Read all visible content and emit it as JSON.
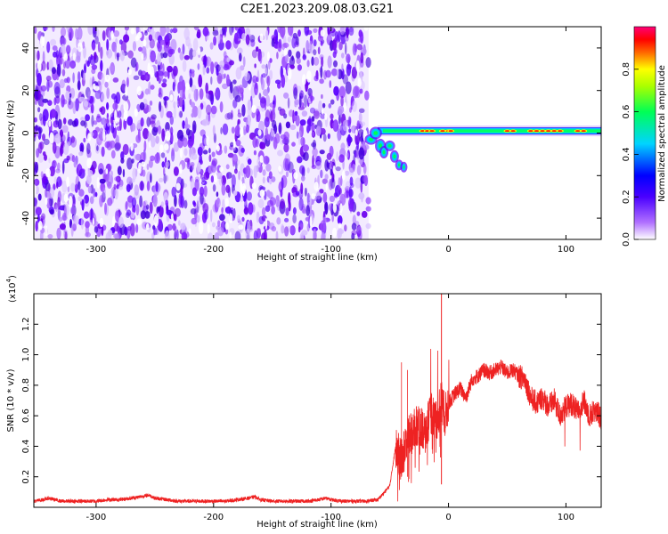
{
  "title": "C2E1.2023.209.08.03.G21",
  "chart_data": [
    {
      "type": "heatmap",
      "xlabel": "Height of straight line (km)",
      "ylabel": "Frequency (Hz)",
      "xlim": [
        -353,
        130
      ],
      "ylim": [
        -50,
        50
      ],
      "xticks": [
        -300,
        -200,
        -100,
        0,
        100
      ],
      "yticks": [
        -40,
        -20,
        0,
        20,
        40
      ],
      "tick_labels_x": [
        "-300",
        "-200",
        "-100",
        "0",
        "100"
      ],
      "tick_labels_y": [
        "-40",
        "-20",
        "0",
        "20",
        "40"
      ],
      "noise_region_x": [
        -353,
        -68
      ],
      "signal_line_freq_hz": 1,
      "signal_start_x": -68,
      "colorbar": {
        "label": "Normalized spectral amplitude",
        "range": [
          0.0,
          1.0
        ],
        "ticks": [
          0.0,
          0.2,
          0.4,
          0.6,
          0.8
        ],
        "tick_labels": [
          "0.0",
          "0.2",
          "0.4",
          "0.6",
          "0.8"
        ],
        "colors": [
          "#ffffff",
          "#8a00ff",
          "#0000ff",
          "#00d4ff",
          "#00ff66",
          "#ffff00",
          "#ff3300",
          "#ff0077"
        ]
      }
    },
    {
      "type": "line",
      "xlabel": "Height of straight line (km)",
      "ylabel": "SNR (10 * v/v)",
      "multiplier_label": "(x10",
      "multiplier_exp": "4",
      "multiplier_close": ")",
      "xlim": [
        -353,
        130
      ],
      "ylim": [
        0,
        1.4
      ],
      "xticks": [
        -300,
        -200,
        -100,
        0,
        100
      ],
      "yticks": [
        0.2,
        0.4,
        0.6,
        0.8,
        1.0,
        1.2
      ],
      "tick_labels_x": [
        "-300",
        "-200",
        "-100",
        "0",
        "100"
      ],
      "tick_labels_y": [
        "0.2",
        "0.4",
        "0.6",
        "0.8",
        "1.0",
        "1.2"
      ],
      "line_color": "#ee2222",
      "series": [
        {
          "x": [
            -353,
            -345,
            -340,
            -330,
            -320,
            -310,
            -300,
            -290,
            -280,
            -270,
            -262,
            -255,
            -250,
            -240,
            -230,
            -220,
            -210,
            -200,
            -190,
            -180,
            -170,
            -165,
            -160,
            -150,
            -140,
            -130,
            -120,
            -110,
            -105,
            -100,
            -90,
            -80,
            -70,
            -60,
            -50,
            -45,
            -40,
            -35,
            -30,
            -25,
            -20,
            -15,
            -10,
            -6,
            -3,
            0,
            5,
            10,
            15,
            20,
            25,
            30,
            35,
            40,
            45,
            50,
            55,
            60,
            65,
            70,
            75,
            80,
            85,
            90,
            95,
            100,
            105,
            110,
            115,
            120,
            125,
            130
          ],
          "y": [
            0.04,
            0.05,
            0.06,
            0.04,
            0.04,
            0.04,
            0.04,
            0.05,
            0.05,
            0.06,
            0.07,
            0.08,
            0.06,
            0.05,
            0.04,
            0.04,
            0.04,
            0.04,
            0.04,
            0.05,
            0.06,
            0.07,
            0.05,
            0.04,
            0.04,
            0.04,
            0.04,
            0.05,
            0.06,
            0.05,
            0.04,
            0.04,
            0.04,
            0.05,
            0.14,
            0.4,
            0.3,
            0.45,
            0.5,
            0.55,
            0.48,
            0.62,
            0.55,
            0.7,
            0.6,
            0.68,
            0.74,
            0.78,
            0.72,
            0.84,
            0.86,
            0.9,
            0.88,
            0.9,
            0.92,
            0.88,
            0.9,
            0.86,
            0.84,
            0.72,
            0.68,
            0.72,
            0.66,
            0.7,
            0.6,
            0.66,
            0.68,
            0.62,
            0.7,
            0.6,
            0.64,
            0.58
          ]
        }
      ]
    }
  ]
}
